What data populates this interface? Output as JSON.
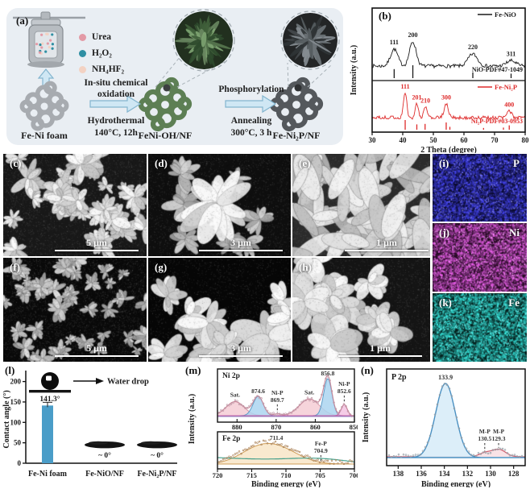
{
  "panel_a": {
    "label": "(a)",
    "reagents": [
      {
        "name": "Urea",
        "color": "#e39aa6"
      },
      {
        "name": "H₂O₂",
        "color": "#2f8fa3"
      },
      {
        "name": "NH₄HF₂",
        "color": "#f3d2c3"
      }
    ],
    "step1": {
      "line1": "In-situ chemical",
      "line2": "oxidation",
      "line3": "Hydrothermal",
      "line4": "140°C, 12h"
    },
    "step2": {
      "line1": "Phosphorylation",
      "line2": "Annealing",
      "line3": "300°C, 3 h"
    },
    "materials": [
      "Fe-Ni foam",
      "FeNi-OH/NF",
      "Fe-Ni₂P/NF"
    ]
  },
  "sem_panels": [
    {
      "label": "(c)",
      "scale_bar": "5 μm"
    },
    {
      "label": "(d)",
      "scale_bar": "3 μm"
    },
    {
      "label": "(e)",
      "scale_bar": "1 μm"
    },
    {
      "label": "(f)",
      "scale_bar": "5 μm"
    },
    {
      "label": "(g)",
      "scale_bar": "3 μm"
    },
    {
      "label": "(h)",
      "scale_bar": "1 μm"
    }
  ],
  "eds_maps": [
    {
      "label": "(i)",
      "element": "P",
      "color": "#3939c8",
      "bg": "#0b0b30"
    },
    {
      "label": "(j)",
      "element": "Ni",
      "color": "#c44fc4",
      "bg": "#270a24"
    },
    {
      "label": "(k)",
      "element": "Fe",
      "color": "#2dbfb7",
      "bg": "#05201d"
    }
  ],
  "chart_data": [
    {
      "id": "b",
      "panel": "(b)",
      "type": "line",
      "xlabel": "2 Theta (degree)",
      "ylabel": "Intensity (a.u.)",
      "xlim": [
        30,
        80
      ],
      "xticks": [
        30,
        40,
        50,
        60,
        70,
        80
      ],
      "subplots": [
        {
          "legend": "Fe-NiO",
          "color": "#1a1a1a",
          "peaks": [
            {
              "label": "111",
              "x": 37.2,
              "rel": 0.7,
              "sigma": 1.2
            },
            {
              "label": "200",
              "x": 43.3,
              "rel": 1.0,
              "sigma": 1.1
            },
            {
              "label": "220",
              "x": 62.9,
              "rel": 0.5,
              "sigma": 1.5
            },
            {
              "label": "311",
              "x": 75.4,
              "rel": 0.22,
              "sigma": 1.5
            }
          ],
          "reference": {
            "label": "NiO-PDF#47-1049",
            "sticks": [
              [
                37.2,
                0.7
              ],
              [
                43.3,
                1.0
              ],
              [
                62.9,
                0.45
              ],
              [
                75.4,
                0.35
              ]
            ]
          }
        },
        {
          "legend": "Fe-Ni₂P",
          "color": "#de2b2b",
          "peaks": [
            {
              "label": "111",
              "x": 40.8,
              "rel": 1.0,
              "sigma": 0.55
            },
            {
              "label": "201",
              "x": 44.6,
              "rel": 0.55,
              "sigma": 0.5
            },
            {
              "label": "210",
              "x": 47.4,
              "rel": 0.42,
              "sigma": 0.55
            },
            {
              "label": "300",
              "x": 54.2,
              "rel": 0.55,
              "sigma": 0.7
            },
            {
              "label": "400",
              "x": 74.8,
              "rel": 0.25,
              "sigma": 0.8
            }
          ],
          "reference": {
            "label": "Ni₂P-PDF#03-0953",
            "sticks": [
              [
                40.8,
                1.0
              ],
              [
                44.6,
                0.55
              ],
              [
                47.3,
                0.6
              ],
              [
                54.2,
                0.75
              ],
              [
                55.4,
                0.3
              ],
              [
                66.4,
                0.18
              ],
              [
                72.9,
                0.22
              ],
              [
                74.8,
                0.45
              ]
            ]
          }
        }
      ]
    },
    {
      "id": "l",
      "panel": "(l)",
      "type": "bar",
      "ylabel": "Contact angle (°)",
      "ylim": [
        0,
        215
      ],
      "yticks": [
        0,
        50,
        100,
        150,
        200
      ],
      "categories": [
        "Fe-Ni foam",
        "Fe-NiO/NF",
        "Fe-Ni₂P/NF"
      ],
      "values": [
        141.3,
        0,
        0
      ],
      "value_labels": [
        "141.3°",
        "~ 0°",
        "~ 0°"
      ],
      "annotation": "Water drop",
      "bar_color": "#4a9dc8"
    },
    {
      "id": "m-ni",
      "panel": "(m)",
      "type": "line",
      "title": "Ni 2p",
      "x_reversed": true,
      "xlim": [
        885,
        850
      ],
      "xticks": [
        880,
        870,
        860,
        850
      ],
      "components": [
        {
          "label": "Sat.",
          "center": 880.5,
          "sigma": 2.3,
          "rel": 0.38,
          "role": "satellite"
        },
        {
          "label": "874.6",
          "center": 874.6,
          "sigma": 1.3,
          "rel": 0.52,
          "role": "main"
        },
        {
          "label": "Ni-P",
          "label2": "869.7",
          "center": 869.7,
          "sigma": 0.9,
          "rel": 0.05,
          "role": "marker"
        },
        {
          "label": "Sat.",
          "center": 861.5,
          "sigma": 2.6,
          "rel": 0.45,
          "role": "satellite"
        },
        {
          "label": "856.8",
          "center": 856.8,
          "sigma": 1.05,
          "rel": 1.0,
          "role": "main"
        },
        {
          "label": "Ni-P",
          "label2": "852.6",
          "center": 852.6,
          "sigma": 0.75,
          "rel": 0.3,
          "role": "phosphide"
        }
      ]
    },
    {
      "id": "m-fe",
      "panel": "(m)",
      "type": "line",
      "title": "Fe 2p",
      "x_reversed": true,
      "xlim": [
        720,
        700
      ],
      "xticks": [
        720,
        715,
        710,
        705,
        700
      ],
      "xlabel": "Binding energy (eV)",
      "ylabel": "Intensity (a.u.)",
      "components": [
        {
          "label": "711.4",
          "center": 711.4,
          "sigma": 3.1,
          "rel": 1.0,
          "role": "main"
        },
        {
          "center": 714.8,
          "sigma": 2.6,
          "rel": 0.5,
          "role": "shoulder"
        },
        {
          "label": "Fe-P",
          "label2": "704.9",
          "center": 704.9,
          "sigma": 1.2,
          "rel": 0.12,
          "role": "marker"
        }
      ]
    },
    {
      "id": "n",
      "panel": "(n)",
      "type": "line",
      "title": "P 2p",
      "x_reversed": true,
      "xlim": [
        139,
        127
      ],
      "xticks": [
        138,
        136,
        134,
        132,
        130,
        128
      ],
      "xlabel": "Binding energy (eV)",
      "ylabel": "Intensity (a.u.)",
      "components": [
        {
          "label": "133.9",
          "center": 133.9,
          "sigma": 0.85,
          "rel": 1.0,
          "role": "main"
        },
        {
          "label": "M-P",
          "label2": "130.5",
          "center": 130.5,
          "sigma": 0.5,
          "rel": 0.05,
          "role": "marker"
        },
        {
          "label": "M-P",
          "label2": "129.3",
          "center": 129.3,
          "sigma": 0.6,
          "rel": 0.1,
          "role": "phosphide"
        }
      ]
    }
  ]
}
